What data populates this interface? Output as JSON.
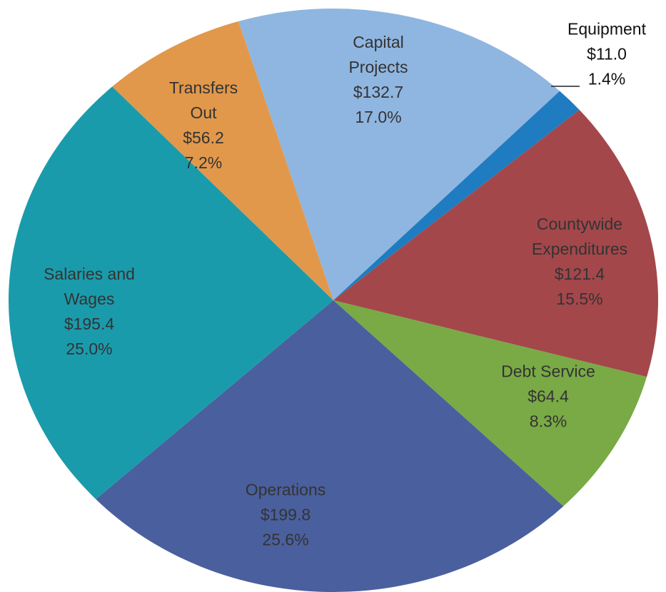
{
  "chart_data": {
    "type": "pie",
    "categories": [
      "Capital Projects",
      "Equipment",
      "Countywide Expenditures",
      "Debt Service",
      "Operations",
      "Salaries and Wages",
      "Transfers Out"
    ],
    "values": [
      132.7,
      11.0,
      121.4,
      64.4,
      199.8,
      195.4,
      56.2
    ],
    "value_labels": [
      "$132.7",
      "$11.0",
      "$121.4",
      "$64.4",
      "$199.8",
      "$195.4",
      "$56.2"
    ],
    "percent_labels": [
      "17.0%",
      "1.4%",
      "15.5%",
      "8.3%",
      "25.6%",
      "25.0%",
      "7.2%"
    ],
    "colors": [
      "#8fb6e0",
      "#1f7cc1",
      "#a3474b",
      "#79aa45",
      "#4a5f9d",
      "#1a9bab",
      "#e1984b"
    ]
  }
}
